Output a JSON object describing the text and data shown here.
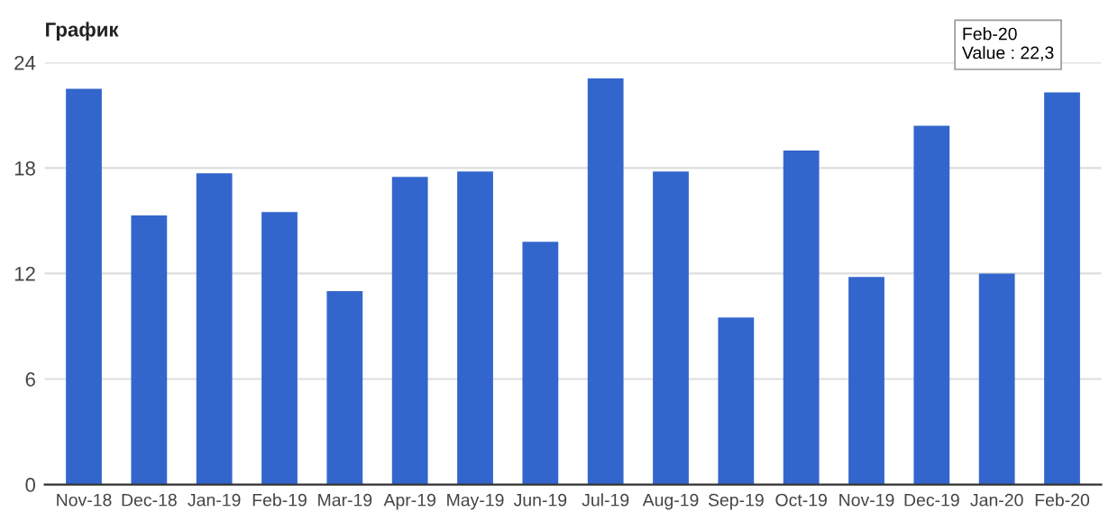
{
  "chart_data": {
    "type": "bar",
    "title": "График",
    "categories": [
      "Nov-18",
      "Dec-18",
      "Jan-19",
      "Feb-19",
      "Mar-19",
      "Apr-19",
      "May-19",
      "Jun-19",
      "Jul-19",
      "Aug-19",
      "Sep-19",
      "Oct-19",
      "Nov-19",
      "Dec-19",
      "Jan-20",
      "Feb-20"
    ],
    "values": [
      22.5,
      15.3,
      17.7,
      15.5,
      11,
      17.5,
      17.8,
      13.8,
      23.1,
      17.8,
      9.5,
      19,
      11.8,
      20.4,
      12,
      22.3
    ],
    "color": "#3366cc",
    "ylim": [
      0,
      24
    ],
    "yticks": [
      0,
      6,
      12,
      18,
      24
    ],
    "grid": "y",
    "annotations": [
      {
        "text": "Feb-20\nValue : 22,3",
        "x": "Feb-20",
        "y": 22.3
      }
    ]
  }
}
